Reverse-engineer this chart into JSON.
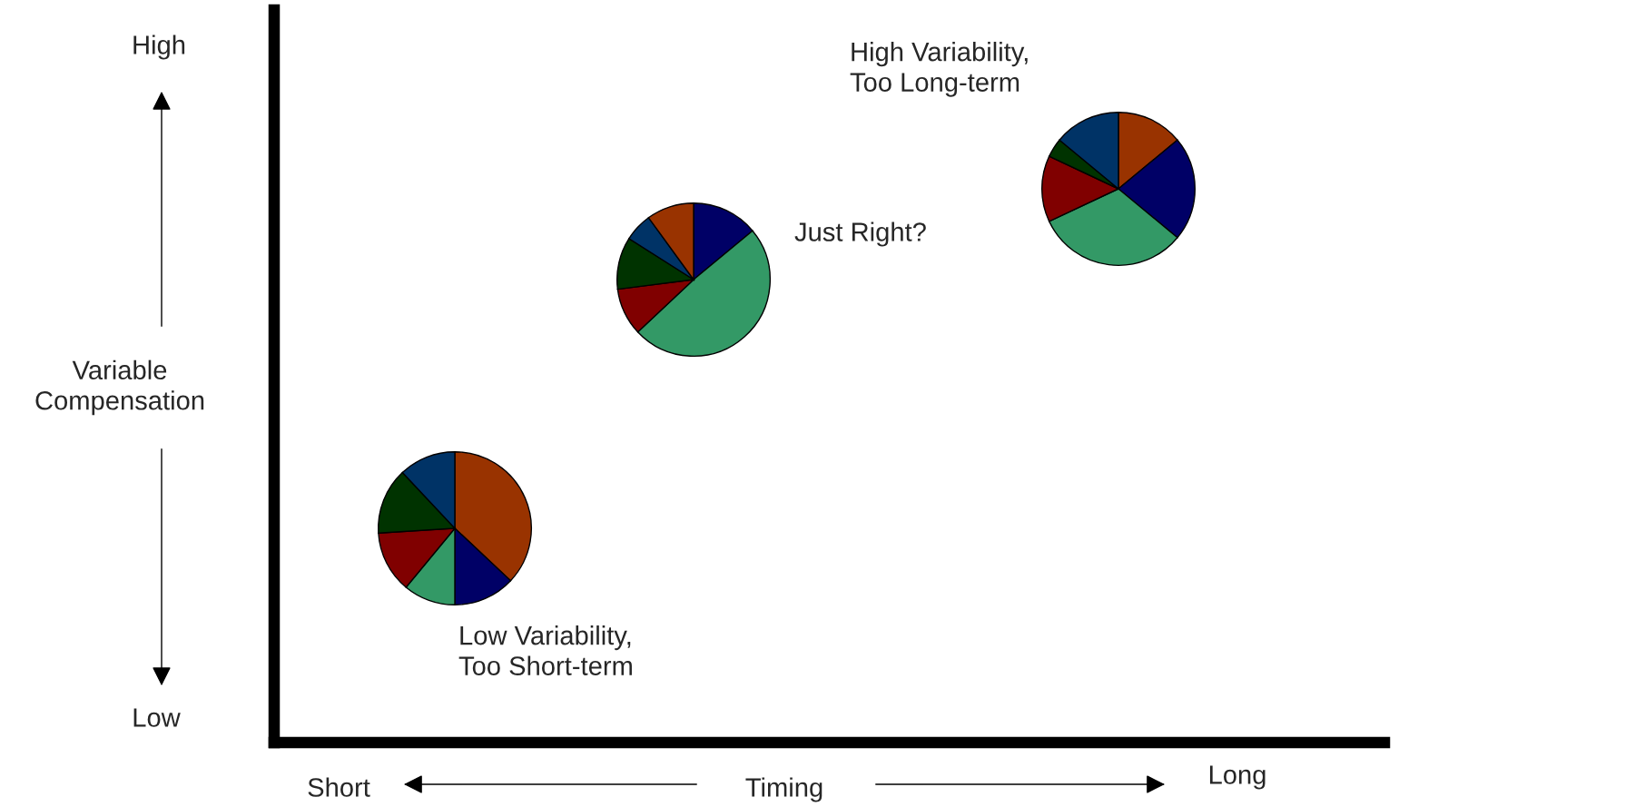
{
  "chart_data": [
    {
      "type": "other",
      "xlabel": "Timing",
      "ylabel": "Variable\nCompensation",
      "annotations": [
        "High",
        "Low",
        "Short",
        "Long"
      ]
    },
    {
      "type": "pie",
      "categories": [
        null,
        null,
        null,
        null,
        null,
        null
      ],
      "values": [
        37,
        13,
        11,
        13,
        14,
        12
      ],
      "colors": [
        "#993300",
        "#000066",
        "#339966",
        "#800000",
        "#003300",
        "#003366"
      ],
      "annotations": [
        "Low Variability,\nToo Short-term"
      ]
    },
    {
      "type": "pie",
      "categories": [
        null,
        null,
        null,
        null,
        null,
        null
      ],
      "values": [
        14,
        49,
        10,
        11,
        6,
        10
      ],
      "colors": [
        "#000066",
        "#339966",
        "#800000",
        "#003300",
        "#003366",
        "#993300"
      ],
      "annotations": [
        "Just Right?"
      ]
    },
    {
      "type": "pie",
      "categories": [
        null,
        null,
        null,
        null,
        null,
        null
      ],
      "values": [
        14,
        22,
        32,
        14,
        4,
        14
      ],
      "colors": [
        "#993300",
        "#000066",
        "#339966",
        "#800000",
        "#003300",
        "#003366"
      ],
      "annotations": [
        "High Variability,\nToo Long-term"
      ]
    }
  ]
}
